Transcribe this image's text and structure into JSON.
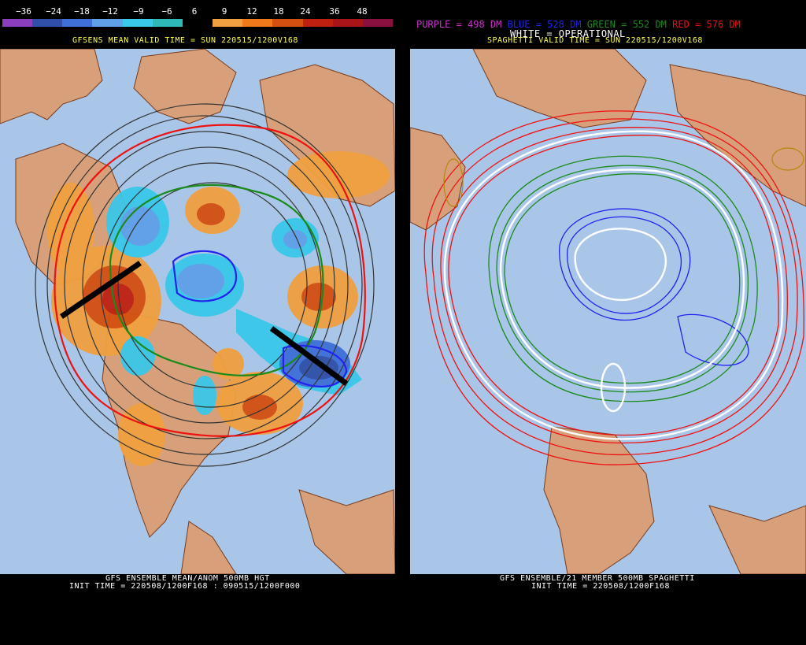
{
  "left": {
    "colorbar": {
      "labels": [
        "−36",
        "−24",
        "−18",
        "−12",
        "−9",
        "−6",
        "6",
        "9",
        "12",
        "18",
        "24",
        "36",
        "48"
      ],
      "colors": [
        "#8b3fbf",
        "#2f4fa8",
        "#3f6fd8",
        "#5fa0e8",
        "#39c8e8",
        "#2fb8b8",
        "#000000",
        "#f0a040",
        "#f07a1a",
        "#d45010",
        "#c02010",
        "#a81418",
        "#8a1040"
      ]
    },
    "valid_time": "GFSENS MEAN VALID TIME = SUN 220515/1200V168",
    "footer_line1": "GFS ENSEMBLE MEAN/ANOM 500MB HGT",
    "footer_line2": "INIT TIME = 220508/1200F168 : 090515/1200F000"
  },
  "right": {
    "legend": {
      "purple": "PURPLE = 498 DM",
      "blue": "BLUE = 528 DM",
      "green": "GREEN = 552 DM",
      "red": "RED = 576 DM",
      "white": "WHITE = OPERATIONAL"
    },
    "colors": {
      "purple": "#cc33cc",
      "blue": "#2222ee",
      "green": "#1a8a1a",
      "red": "#ee1111",
      "white": "#ffffff"
    },
    "valid_time": "SPAGHETTI VALID TIME = SUN 220515/1200V168",
    "footer_line1": "GFS ENSEMBLE/21 MEMBER 500MB SPAGHETTI",
    "footer_line2": "INIT TIME = 220508/1200F168"
  }
}
